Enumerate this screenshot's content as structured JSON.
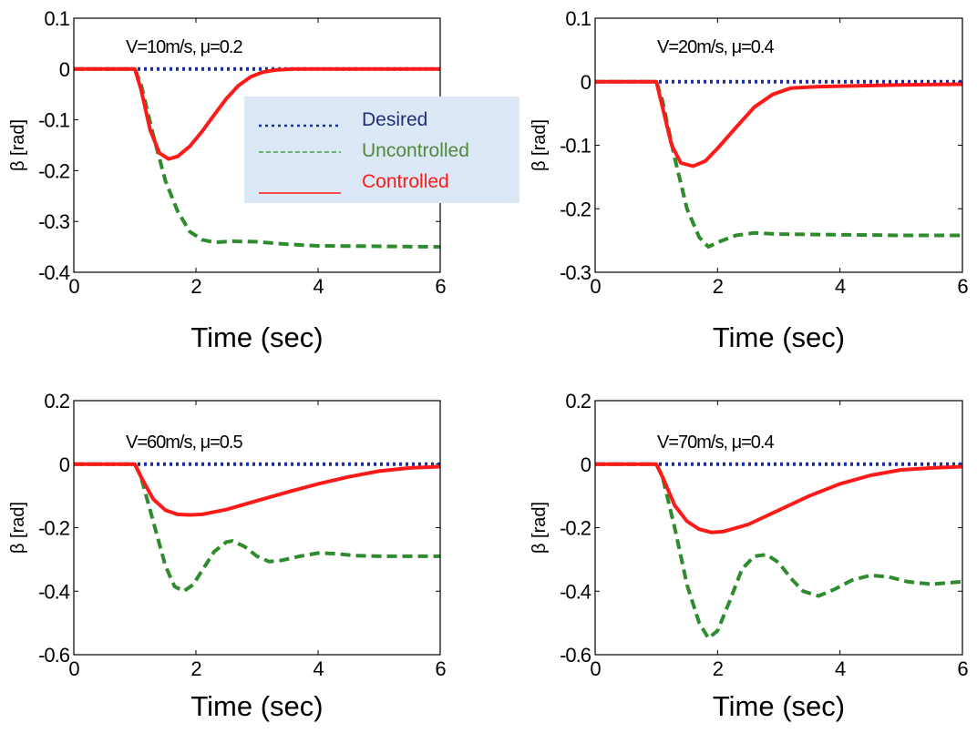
{
  "legend": {
    "entries": [
      {
        "label": "Desired",
        "color": "#1a2f9a",
        "dash": "dotted",
        "text_color": "#1f2f7a"
      },
      {
        "label": "Uncontrolled",
        "color": "#2e8b2e",
        "dash": "dashed",
        "text_color": "#4f8a3a"
      },
      {
        "label": "Controlled",
        "color": "#ff1a1a",
        "dash": "solid",
        "text_color": "#ff1a1a"
      }
    ],
    "background": "#dce8f5"
  },
  "chart_data": [
    {
      "type": "line",
      "annotation": "V=10m/s, μ=0.2",
      "xlabel": "Time (sec)",
      "ylabel": "β [rad]",
      "xlim": [
        0,
        6
      ],
      "ylim": [
        -0.4,
        0.1
      ],
      "xticks": [
        0,
        2,
        4,
        6
      ],
      "xtick_labels": [
        "0",
        "2",
        "4",
        "6"
      ],
      "yticks": [
        0.1,
        0,
        -0.1,
        -0.2,
        -0.3,
        -0.4
      ],
      "ytick_labels": [
        "0.1",
        "0",
        "-0.1",
        "-0.2",
        "-0.3",
        "-0.4"
      ],
      "series": [
        {
          "name": "Desired",
          "x": [
            0,
            6
          ],
          "y": [
            0,
            0
          ]
        },
        {
          "name": "Uncontrolled",
          "x": [
            0,
            1,
            1.1,
            1.3,
            1.5,
            1.7,
            1.9,
            2.1,
            2.3,
            2.6,
            3.0,
            3.5,
            4.0,
            5.0,
            6.0
          ],
          "y": [
            0,
            0,
            -0.03,
            -0.13,
            -0.22,
            -0.28,
            -0.32,
            -0.336,
            -0.341,
            -0.339,
            -0.34,
            -0.345,
            -0.348,
            -0.349,
            -0.35
          ]
        },
        {
          "name": "Controlled",
          "x": [
            0,
            1,
            1.1,
            1.25,
            1.4,
            1.55,
            1.7,
            1.9,
            2.1,
            2.3,
            2.5,
            2.7,
            2.9,
            3.1,
            3.3,
            3.6,
            4.0,
            5.0,
            6.0
          ],
          "y": [
            0,
            0,
            -0.04,
            -0.12,
            -0.165,
            -0.177,
            -0.172,
            -0.152,
            -0.123,
            -0.09,
            -0.058,
            -0.032,
            -0.015,
            -0.006,
            -0.002,
            0,
            0,
            0,
            0
          ]
        }
      ]
    },
    {
      "type": "line",
      "annotation": "V=20m/s, μ=0.4",
      "xlabel": "Time (sec)",
      "ylabel": "β [rad]",
      "xlim": [
        0,
        6
      ],
      "ylim": [
        -0.3,
        0.1
      ],
      "xticks": [
        0,
        2,
        4,
        6
      ],
      "xtick_labels": [
        "0",
        "2",
        "4",
        "6"
      ],
      "yticks": [
        0.1,
        0,
        -0.1,
        -0.2,
        -0.3
      ],
      "ytick_labels": [
        "0.1",
        "0",
        "-0.1",
        "-0.2",
        "-0.3"
      ],
      "series": [
        {
          "name": "Desired",
          "x": [
            0,
            6
          ],
          "y": [
            0,
            0
          ]
        },
        {
          "name": "Uncontrolled",
          "x": [
            0,
            1,
            1.1,
            1.3,
            1.5,
            1.7,
            1.85,
            2.0,
            2.3,
            2.6,
            3.0,
            4.0,
            5.0,
            6.0
          ],
          "y": [
            0,
            0,
            -0.03,
            -0.12,
            -0.2,
            -0.245,
            -0.26,
            -0.253,
            -0.242,
            -0.238,
            -0.24,
            -0.241,
            -0.242,
            -0.242
          ]
        },
        {
          "name": "Controlled",
          "x": [
            0,
            1,
            1.1,
            1.25,
            1.4,
            1.6,
            1.8,
            2.0,
            2.3,
            2.6,
            2.9,
            3.2,
            3.6,
            4.0,
            5.0,
            6.0
          ],
          "y": [
            0,
            0,
            -0.04,
            -0.1,
            -0.128,
            -0.133,
            -0.125,
            -0.105,
            -0.072,
            -0.04,
            -0.02,
            -0.01,
            -0.008,
            -0.007,
            -0.005,
            -0.004
          ]
        }
      ]
    },
    {
      "type": "line",
      "annotation": "V=60m/s, μ=0.5",
      "xlabel": "Time (sec)",
      "ylabel": "β [rad]",
      "xlim": [
        0,
        6
      ],
      "ylim": [
        -0.6,
        0.2
      ],
      "xticks": [
        0,
        2,
        4,
        6
      ],
      "xtick_labels": [
        "0",
        "2",
        "4",
        "6"
      ],
      "yticks": [
        0.2,
        0,
        -0.2,
        -0.4,
        -0.6
      ],
      "ytick_labels": [
        "0.2",
        "0",
        "-0.2",
        "-0.4",
        "-0.6"
      ],
      "series": [
        {
          "name": "Desired",
          "x": [
            0,
            6
          ],
          "y": [
            0,
            0
          ]
        },
        {
          "name": "Uncontrolled",
          "x": [
            0,
            1,
            1.1,
            1.3,
            1.5,
            1.65,
            1.8,
            1.95,
            2.1,
            2.3,
            2.5,
            2.6,
            2.8,
            3.0,
            3.2,
            3.4,
            3.7,
            4.0,
            4.3,
            4.6,
            5.0,
            5.5,
            6.0
          ],
          "y": [
            0,
            0,
            -0.04,
            -0.18,
            -0.32,
            -0.385,
            -0.4,
            -0.38,
            -0.335,
            -0.275,
            -0.245,
            -0.242,
            -0.26,
            -0.29,
            -0.307,
            -0.303,
            -0.29,
            -0.28,
            -0.282,
            -0.288,
            -0.29,
            -0.29,
            -0.29
          ]
        },
        {
          "name": "Controlled",
          "x": [
            0,
            1,
            1.1,
            1.3,
            1.5,
            1.7,
            1.9,
            2.1,
            2.5,
            3.0,
            3.5,
            4.0,
            4.5,
            5.0,
            5.5,
            6.0
          ],
          "y": [
            0,
            0,
            -0.04,
            -0.11,
            -0.145,
            -0.158,
            -0.16,
            -0.158,
            -0.143,
            -0.115,
            -0.088,
            -0.062,
            -0.04,
            -0.022,
            -0.012,
            -0.008
          ]
        }
      ]
    },
    {
      "type": "line",
      "annotation": "V=70m/s, μ=0.4",
      "xlabel": "Time (sec)",
      "ylabel": "β [rad]",
      "xlim": [
        0,
        6
      ],
      "ylim": [
        -0.6,
        0.2
      ],
      "xticks": [
        0,
        2,
        4,
        6
      ],
      "xtick_labels": [
        "0",
        "2",
        "4",
        "6"
      ],
      "yticks": [
        0.2,
        0,
        -0.2,
        -0.4,
        -0.6
      ],
      "ytick_labels": [
        "0.2",
        "0",
        "-0.2",
        "-0.4",
        "-0.6"
      ],
      "series": [
        {
          "name": "Desired",
          "x": [
            0,
            6
          ],
          "y": [
            0,
            0
          ]
        },
        {
          "name": "Uncontrolled",
          "x": [
            0,
            1,
            1.1,
            1.3,
            1.5,
            1.7,
            1.85,
            2.0,
            2.2,
            2.4,
            2.6,
            2.8,
            3.0,
            3.2,
            3.4,
            3.65,
            3.9,
            4.2,
            4.5,
            4.8,
            5.1,
            5.5,
            6.0
          ],
          "y": [
            0,
            0,
            -0.04,
            -0.2,
            -0.38,
            -0.5,
            -0.548,
            -0.525,
            -0.43,
            -0.33,
            -0.29,
            -0.285,
            -0.31,
            -0.36,
            -0.4,
            -0.415,
            -0.395,
            -0.365,
            -0.35,
            -0.355,
            -0.37,
            -0.378,
            -0.37
          ]
        },
        {
          "name": "Controlled",
          "x": [
            0,
            1,
            1.1,
            1.3,
            1.5,
            1.7,
            1.9,
            2.1,
            2.5,
            3.0,
            3.5,
            4.0,
            4.5,
            5.0,
            5.5,
            6.0
          ],
          "y": [
            0,
            0,
            -0.04,
            -0.13,
            -0.18,
            -0.205,
            -0.215,
            -0.212,
            -0.19,
            -0.145,
            -0.1,
            -0.062,
            -0.035,
            -0.018,
            -0.012,
            -0.008
          ]
        }
      ]
    }
  ]
}
